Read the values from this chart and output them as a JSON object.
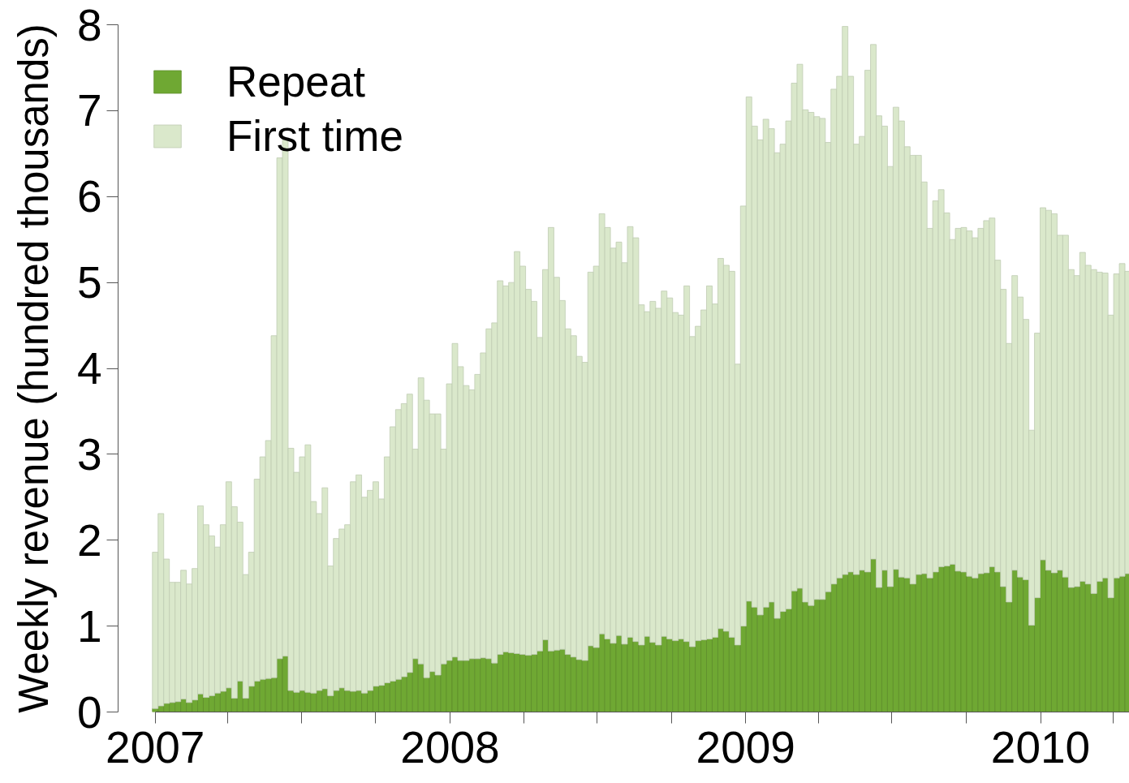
{
  "chart_data": {
    "type": "bar",
    "stacked": true,
    "ylabel": "Weekly revenue (hundred thousands)",
    "legend": "top left",
    "xlim": [
      "2006-11-16",
      "2010-04-21"
    ],
    "ylim": [
      0,
      8
    ],
    "yticks": [
      0,
      1,
      2,
      3,
      4,
      5,
      6,
      7,
      8
    ],
    "xticks": [
      {
        "value": "2007-01-01",
        "label": "2007"
      },
      {
        "value": "2007-04-01",
        "label": null
      },
      {
        "value": "2007-07-01",
        "label": null
      },
      {
        "value": "2007-10-01",
        "label": null
      },
      {
        "value": "2008-01-01",
        "label": "2008"
      },
      {
        "value": "2008-04-01",
        "label": null
      },
      {
        "value": "2008-07-01",
        "label": null
      },
      {
        "value": "2008-10-01",
        "label": null
      },
      {
        "value": "2009-01-01",
        "label": "2009"
      },
      {
        "value": "2009-04-01",
        "label": null
      },
      {
        "value": "2009-07-01",
        "label": null
      },
      {
        "value": "2009-10-01",
        "label": null
      },
      {
        "value": "2010-01-01",
        "label": "2010"
      },
      {
        "value": "2010-04-01",
        "label": null
      }
    ],
    "x": [
      "2007-01-01",
      "2007-01-08",
      "2007-01-15",
      "2007-01-22",
      "2007-01-29",
      "2007-02-05",
      "2007-02-12",
      "2007-02-19",
      "2007-02-26",
      "2007-03-05",
      "2007-03-12",
      "2007-03-19",
      "2007-03-26",
      "2007-04-02",
      "2007-04-09",
      "2007-04-16",
      "2007-04-23",
      "2007-04-30",
      "2007-05-07",
      "2007-05-14",
      "2007-05-21",
      "2007-05-28",
      "2007-06-04",
      "2007-06-11",
      "2007-06-18",
      "2007-06-25",
      "2007-07-02",
      "2007-07-09",
      "2007-07-16",
      "2007-07-23",
      "2007-07-30",
      "2007-08-06",
      "2007-08-13",
      "2007-08-20",
      "2007-08-27",
      "2007-09-03",
      "2007-09-10",
      "2007-09-17",
      "2007-09-24",
      "2007-10-01",
      "2007-10-08",
      "2007-10-15",
      "2007-10-22",
      "2007-10-29",
      "2007-11-05",
      "2007-11-12",
      "2007-11-19",
      "2007-11-26",
      "2007-12-03",
      "2007-12-10",
      "2007-12-17",
      "2007-12-24",
      "2007-12-31",
      "2008-01-07",
      "2008-01-14",
      "2008-01-21",
      "2008-01-28",
      "2008-02-04",
      "2008-02-11",
      "2008-02-18",
      "2008-02-25",
      "2008-03-03",
      "2008-03-10",
      "2008-03-17",
      "2008-03-24",
      "2008-03-31",
      "2008-04-07",
      "2008-04-14",
      "2008-04-21",
      "2008-04-28",
      "2008-05-05",
      "2008-05-12",
      "2008-05-19",
      "2008-05-26",
      "2008-06-02",
      "2008-06-09",
      "2008-06-16",
      "2008-06-23",
      "2008-06-30",
      "2008-07-07",
      "2008-07-14",
      "2008-07-21",
      "2008-07-28",
      "2008-08-04",
      "2008-08-11",
      "2008-08-18",
      "2008-08-25",
      "2008-09-01",
      "2008-09-08",
      "2008-09-15",
      "2008-09-22",
      "2008-09-29",
      "2008-10-06",
      "2008-10-13",
      "2008-10-20",
      "2008-10-27",
      "2008-11-03",
      "2008-11-10",
      "2008-11-17",
      "2008-11-24",
      "2008-12-01",
      "2008-12-08",
      "2008-12-15",
      "2008-12-22",
      "2008-12-29",
      "2009-01-05",
      "2009-01-12",
      "2009-01-19",
      "2009-01-26",
      "2009-02-02",
      "2009-02-09",
      "2009-02-16",
      "2009-02-23",
      "2009-03-02",
      "2009-03-09",
      "2009-03-16",
      "2009-03-23",
      "2009-03-30",
      "2009-04-06",
      "2009-04-13",
      "2009-04-20",
      "2009-04-27",
      "2009-05-04",
      "2009-05-11",
      "2009-05-18",
      "2009-05-25",
      "2009-06-01",
      "2009-06-08",
      "2009-06-15",
      "2009-06-22",
      "2009-06-29",
      "2009-07-06",
      "2009-07-13",
      "2009-07-20",
      "2009-07-27",
      "2009-08-03",
      "2009-08-10",
      "2009-08-17",
      "2009-08-24",
      "2009-08-31",
      "2009-09-07",
      "2009-09-14",
      "2009-09-21",
      "2009-09-28",
      "2009-10-05",
      "2009-10-12",
      "2009-10-19",
      "2009-10-26",
      "2009-11-02",
      "2009-11-09",
      "2009-11-16",
      "2009-11-23",
      "2009-11-30",
      "2009-12-07",
      "2009-12-14",
      "2009-12-21",
      "2009-12-28",
      "2010-01-04",
      "2010-01-11",
      "2010-01-18",
      "2010-01-25",
      "2010-02-01",
      "2010-02-08",
      "2010-02-15",
      "2010-02-22",
      "2010-03-01",
      "2010-03-08",
      "2010-03-15",
      "2010-03-22",
      "2010-03-29",
      "2010-04-05",
      "2010-04-12",
      "2010-04-19"
    ],
    "series": [
      {
        "name": "Repeat",
        "color": "#6fa833",
        "values": [
          0.04,
          0.07,
          0.1,
          0.11,
          0.12,
          0.15,
          0.11,
          0.14,
          0.21,
          0.17,
          0.19,
          0.22,
          0.24,
          0.28,
          0.16,
          0.36,
          0.16,
          0.3,
          0.36,
          0.38,
          0.39,
          0.4,
          0.62,
          0.65,
          0.25,
          0.23,
          0.25,
          0.23,
          0.22,
          0.25,
          0.27,
          0.19,
          0.25,
          0.28,
          0.25,
          0.24,
          0.25,
          0.22,
          0.25,
          0.3,
          0.31,
          0.34,
          0.36,
          0.38,
          0.41,
          0.46,
          0.62,
          0.56,
          0.4,
          0.47,
          0.43,
          0.56,
          0.6,
          0.64,
          0.6,
          0.6,
          0.62,
          0.62,
          0.63,
          0.62,
          0.57,
          0.67,
          0.7,
          0.69,
          0.68,
          0.67,
          0.66,
          0.67,
          0.71,
          0.84,
          0.71,
          0.72,
          0.73,
          0.67,
          0.64,
          0.61,
          0.6,
          0.77,
          0.75,
          0.91,
          0.85,
          0.8,
          0.89,
          0.79,
          0.87,
          0.82,
          0.78,
          0.88,
          0.81,
          0.78,
          0.88,
          0.85,
          0.83,
          0.85,
          0.82,
          0.76,
          0.83,
          0.84,
          0.85,
          0.87,
          0.97,
          0.94,
          0.87,
          0.78,
          1.0,
          1.29,
          1.22,
          1.13,
          1.22,
          1.28,
          1.09,
          1.17,
          1.2,
          1.41,
          1.44,
          1.28,
          1.24,
          1.31,
          1.31,
          1.4,
          1.49,
          1.56,
          1.6,
          1.63,
          1.6,
          1.65,
          1.63,
          1.78,
          1.45,
          1.65,
          1.46,
          1.66,
          1.57,
          1.56,
          1.49,
          1.6,
          1.61,
          1.56,
          1.63,
          1.69,
          1.7,
          1.72,
          1.64,
          1.63,
          1.58,
          1.56,
          1.61,
          1.62,
          1.69,
          1.63,
          1.46,
          1.28,
          1.65,
          1.57,
          1.54,
          1.01,
          1.33,
          1.77,
          1.65,
          1.62,
          1.65,
          1.57,
          1.45,
          1.46,
          1.52,
          1.49,
          1.38,
          1.52,
          1.56,
          1.33,
          1.56,
          1.58,
          1.61
        ]
      },
      {
        "name": "First time",
        "color": "#dae8cb",
        "values": [
          1.82,
          2.24,
          1.68,
          1.4,
          1.39,
          1.5,
          1.38,
          1.53,
          2.19,
          2.01,
          1.86,
          1.7,
          1.94,
          2.4,
          2.23,
          1.85,
          1.44,
          1.56,
          2.35,
          2.59,
          2.77,
          3.98,
          5.83,
          6.01,
          2.82,
          2.56,
          2.72,
          2.88,
          2.23,
          2.06,
          2.34,
          1.51,
          1.77,
          1.85,
          1.93,
          2.44,
          2.51,
          2.28,
          2.33,
          2.38,
          2.17,
          2.63,
          2.96,
          3.14,
          3.18,
          3.24,
          2.44,
          3.33,
          3.23,
          3.0,
          3.04,
          2.5,
          3.22,
          3.65,
          3.42,
          3.2,
          3.13,
          3.31,
          3.55,
          3.84,
          3.96,
          4.35,
          4.26,
          4.31,
          4.68,
          4.52,
          4.26,
          4.11,
          3.65,
          4.31,
          4.93,
          4.34,
          4.06,
          3.79,
          3.74,
          3.53,
          3.47,
          4.35,
          4.44,
          4.89,
          4.79,
          4.6,
          4.58,
          4.44,
          4.78,
          4.7,
          3.96,
          3.78,
          3.97,
          3.92,
          4.02,
          3.97,
          3.82,
          3.77,
          4.14,
          3.61,
          3.66,
          3.84,
          4.11,
          3.88,
          4.31,
          4.26,
          4.26,
          3.27,
          4.89,
          5.87,
          5.6,
          5.53,
          5.68,
          5.51,
          5.42,
          5.44,
          5.68,
          5.91,
          6.1,
          5.73,
          5.74,
          5.62,
          5.6,
          5.23,
          5.76,
          5.84,
          6.38,
          5.77,
          5.01,
          5.05,
          5.84,
          5.99,
          5.49,
          5.17,
          4.89,
          5.38,
          5.31,
          5.02,
          4.99,
          4.88,
          4.56,
          4.07,
          4.32,
          4.39,
          4.11,
          3.78,
          3.99,
          4.01,
          4.02,
          3.96,
          4.02,
          4.1,
          4.06,
          3.63,
          3.46,
          3.01,
          3.43,
          3.26,
          3.03,
          2.27,
          3.08,
          4.1,
          4.19,
          4.18,
          3.9,
          3.98,
          3.7,
          3.62,
          3.83,
          3.71,
          3.77,
          3.6,
          3.55,
          3.29,
          3.54,
          3.64,
          3.52
        ]
      }
    ]
  }
}
